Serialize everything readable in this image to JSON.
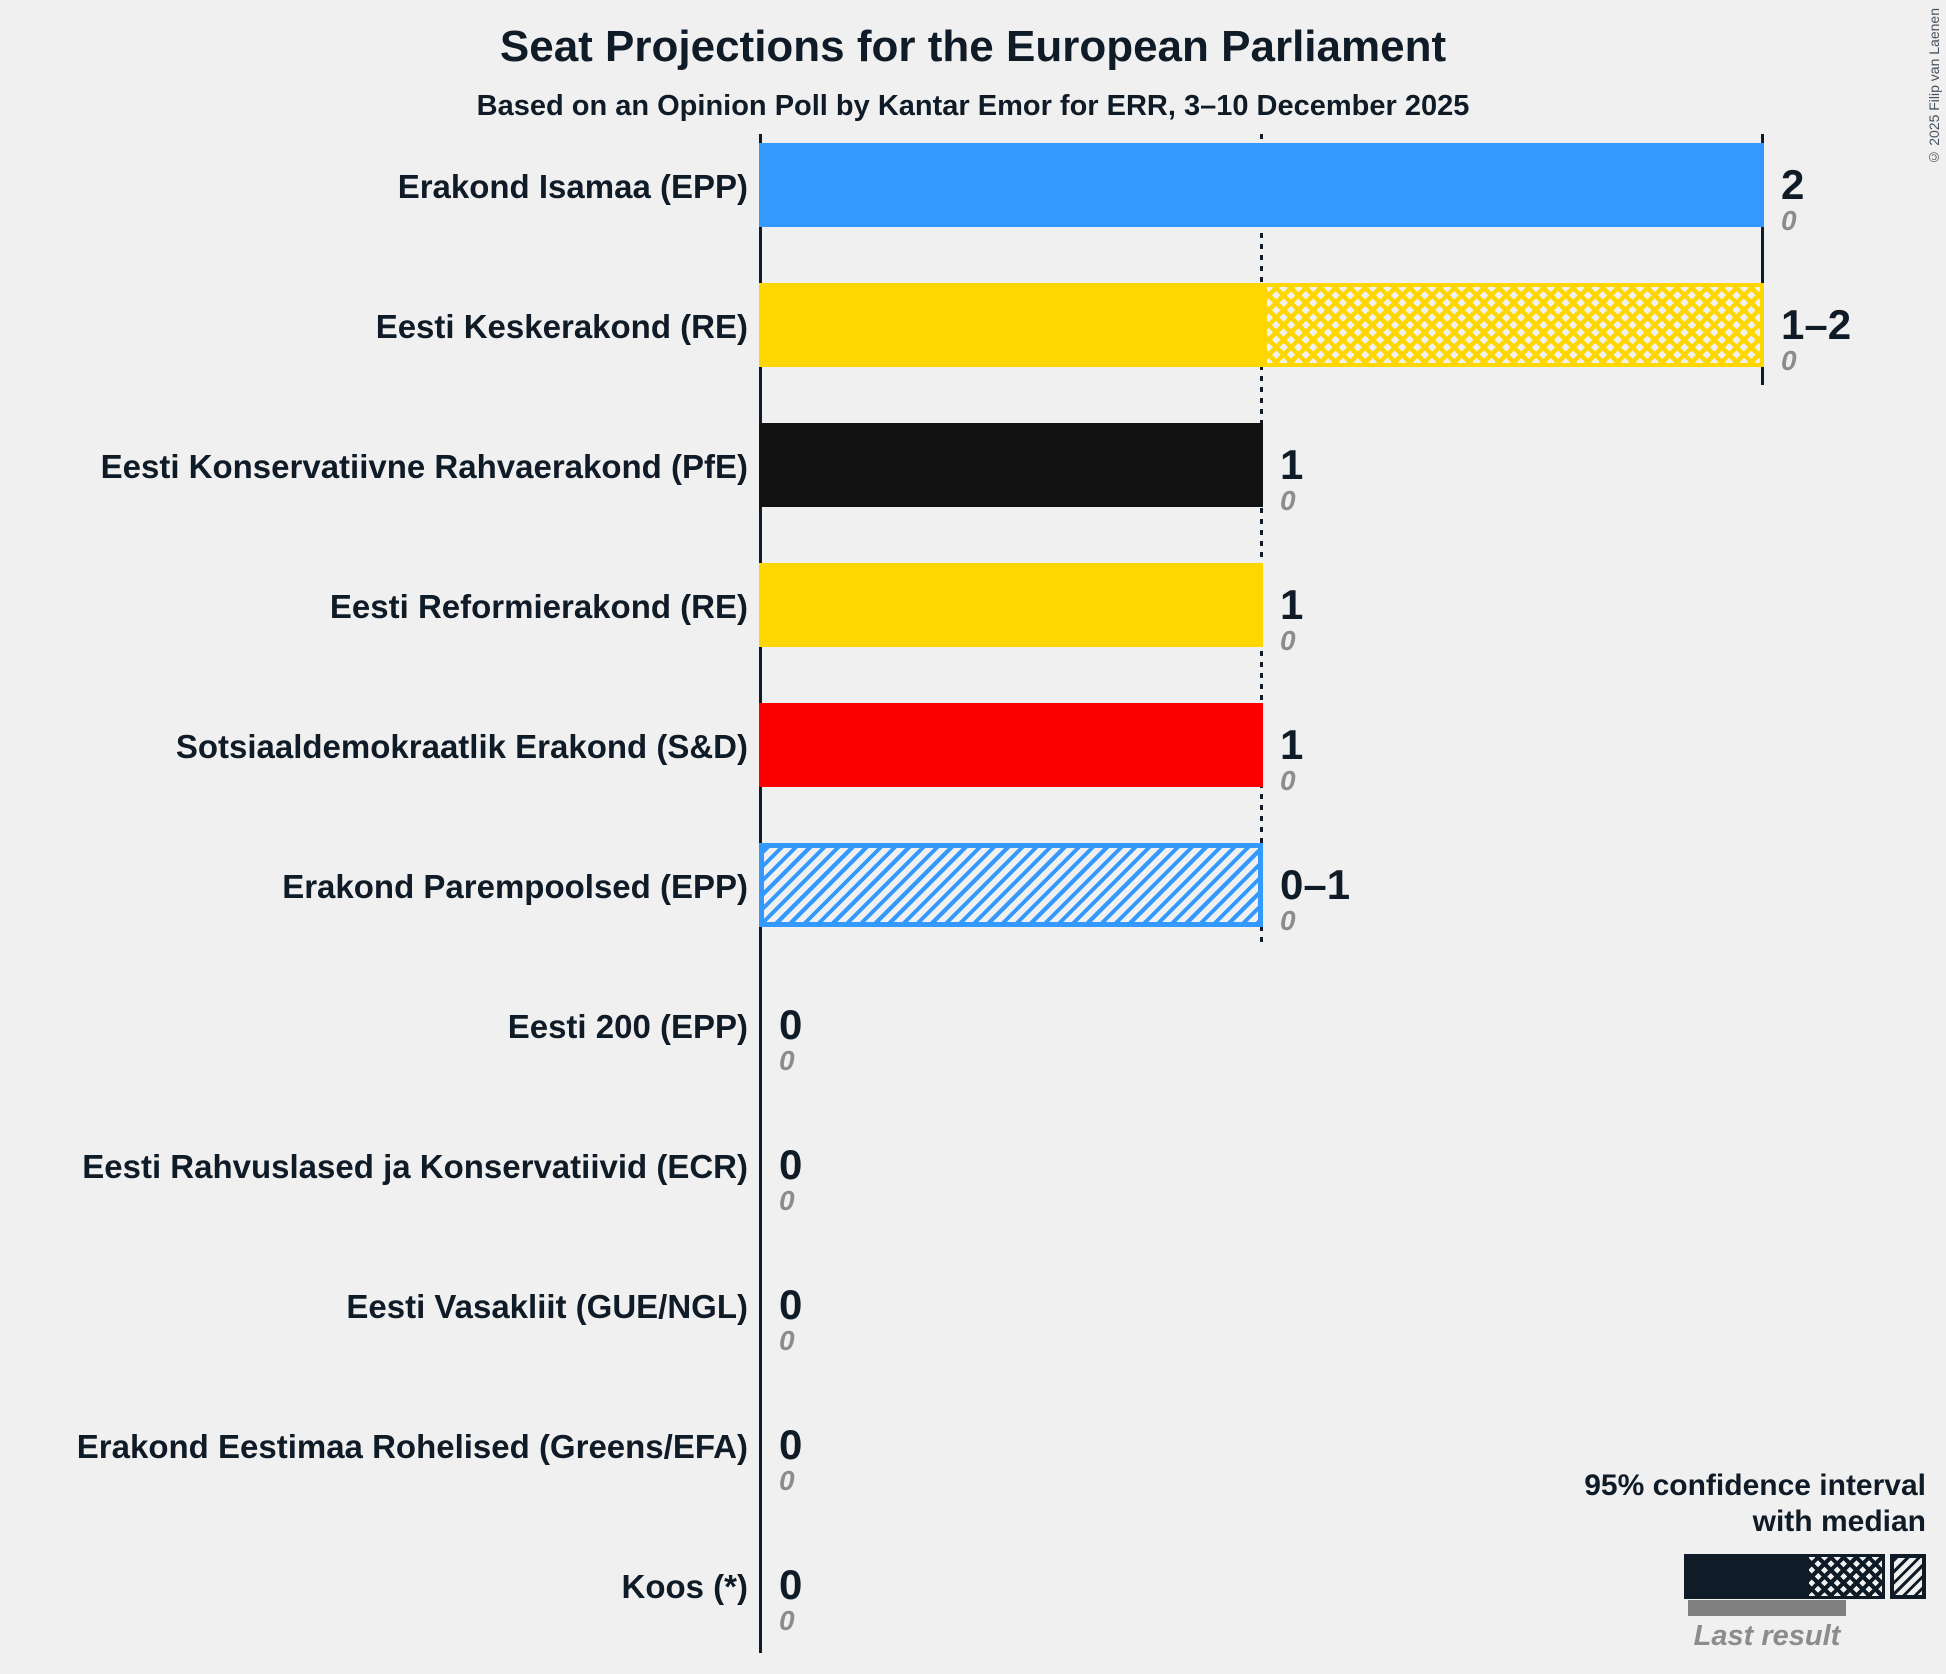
{
  "chart_data": {
    "type": "bar",
    "title": "Seat Projections for the European Parliament",
    "subtitle": "Based on an Opinion Poll by Kantar Emor for ERR, 3–10 December 2025",
    "xlabel": "",
    "ylabel": "",
    "x_axis": {
      "min": 0,
      "max": 2,
      "median_gridline_value": 1,
      "max_gridline_value": 2,
      "tick_labels_shown": false
    },
    "rows": [
      {
        "label": "Erakond Isamaa (EPP)",
        "ci_low": 2,
        "ci_high": 2,
        "value_label": "2",
        "last_result": "0",
        "color": "#3399FF",
        "hatch": "none"
      },
      {
        "label": "Eesti Keskerakond (RE)",
        "ci_low": 1,
        "ci_high": 2,
        "value_label": "1–2",
        "last_result": "0",
        "color": "#FFD700",
        "hatch": "cross"
      },
      {
        "label": "Eesti Konservatiivne Rahvaerakond (PfE)",
        "ci_low": 1,
        "ci_high": 1,
        "value_label": "1",
        "last_result": "0",
        "color": "#111111",
        "hatch": "none"
      },
      {
        "label": "Eesti Reformierakond (RE)",
        "ci_low": 1,
        "ci_high": 1,
        "value_label": "1",
        "last_result": "0",
        "color": "#FFD700",
        "hatch": "none"
      },
      {
        "label": "Sotsiaaldemokraatlik Erakond (S&D)",
        "ci_low": 1,
        "ci_high": 1,
        "value_label": "1",
        "last_result": "0",
        "color": "#FA0000",
        "hatch": "none"
      },
      {
        "label": "Erakond Parempoolsed (EPP)",
        "ci_low": 0,
        "ci_high": 1,
        "value_label": "0–1",
        "last_result": "0",
        "color": "#3399FF",
        "hatch": "diag"
      },
      {
        "label": "Eesti 200 (EPP)",
        "ci_low": 0,
        "ci_high": 0,
        "value_label": "0",
        "last_result": "0",
        "color": null,
        "hatch": "none"
      },
      {
        "label": "Eesti Rahvuslased ja Konservatiivid (ECR)",
        "ci_low": 0,
        "ci_high": 0,
        "value_label": "0",
        "last_result": "0",
        "color": null,
        "hatch": "none"
      },
      {
        "label": "Eesti Vasakliit (GUE/NGL)",
        "ci_low": 0,
        "ci_high": 0,
        "value_label": "0",
        "last_result": "0",
        "color": null,
        "hatch": "none"
      },
      {
        "label": "Erakond Eestimaa Rohelised (Greens/EFA)",
        "ci_low": 0,
        "ci_high": 0,
        "value_label": "0",
        "last_result": "0",
        "color": null,
        "hatch": "none"
      },
      {
        "label": "Koos (*)",
        "ci_low": 0,
        "ci_high": 0,
        "value_label": "0",
        "last_result": "0",
        "color": null,
        "hatch": "none"
      }
    ],
    "legend": {
      "ci_label_line1": "95% confidence interval",
      "ci_label_line2": "with median",
      "last_result_label": "Last result"
    },
    "copyright": "© 2025 Filip van Laenen",
    "colors": {
      "background": "#F0F0F0",
      "text": "#0F1B27",
      "last_result_gray": "#8C8C8C",
      "last_result_bar": "#808080"
    }
  }
}
